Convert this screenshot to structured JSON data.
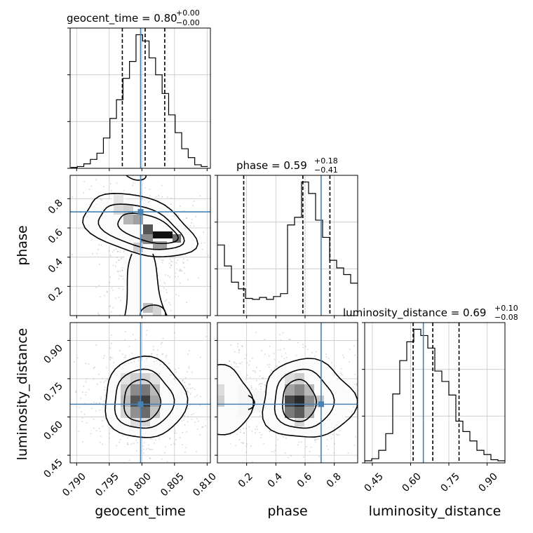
{
  "chart_data": {
    "type": "corner",
    "parameters": [
      "geocent_time",
      "phase",
      "luminosity_distance"
    ],
    "truths": [
      0.7998,
      0.71,
      0.65
    ],
    "truth_color": "#4682b4",
    "grid": true,
    "panels": [
      {
        "kind": "hist",
        "param": "geocent_time",
        "title": {
          "label": "geocent_time = 0.80",
          "plus": "+0.00",
          "minus": "−0.00"
        },
        "x_ticks": [
          "0.790",
          "0.795",
          "0.800",
          "0.805",
          "0.810"
        ],
        "xlim": [
          0.789,
          0.8105
        ],
        "xlabel": "geocent_time",
        "quantiles": [
          0.797,
          0.8005,
          0.8035
        ],
        "bin_edges": [
          0.7891,
          0.7901,
          0.7911,
          0.7921,
          0.7931,
          0.7941,
          0.7951,
          0.7961,
          0.7971,
          0.7981,
          0.7991,
          0.8001,
          0.8011,
          0.8021,
          0.8031,
          0.8041,
          0.8051,
          0.8061,
          0.8071,
          0.8081,
          0.8091,
          0.8101
        ],
        "counts": [
          1,
          2,
          5,
          10,
          17,
          34,
          56,
          77,
          101,
          120,
          150,
          143,
          124,
          105,
          84,
          60,
          40,
          22,
          12,
          4,
          2
        ]
      },
      {
        "kind": "hist",
        "param": "phase",
        "title": {
          "label": "phase = 0.59",
          "plus": "+0.18",
          "minus": "−0.41"
        },
        "xlim": [
          0.0,
          0.96
        ],
        "quantiles": [
          0.18,
          0.585,
          0.77
        ],
        "bin_edges": [
          0.0,
          0.048,
          0.096,
          0.144,
          0.192,
          0.24,
          0.288,
          0.336,
          0.384,
          0.432,
          0.48,
          0.528,
          0.576,
          0.624,
          0.672,
          0.72,
          0.768,
          0.816,
          0.864,
          0.912,
          0.96
        ],
        "counts": [
          74,
          52,
          35,
          28,
          18,
          17,
          19,
          17,
          20,
          23,
          95,
          103,
          140,
          128,
          100,
          82,
          58,
          50,
          43,
          34
        ]
      },
      {
        "kind": "hist",
        "param": "luminosity_distance",
        "title": {
          "label": "luminosity_distance = 0.69",
          "plus": "+0.10",
          "minus": "−0.08"
        },
        "x_ticks": [
          "0.45",
          "0.60",
          "0.75",
          "0.90"
        ],
        "xlim": [
          0.42,
          0.97
        ],
        "xlabel": "luminosity_distance",
        "quantiles": [
          0.61,
          0.687,
          0.79
        ],
        "bin_edges": [
          0.42,
          0.4475,
          0.475,
          0.5025,
          0.53,
          0.5575,
          0.585,
          0.6125,
          0.64,
          0.6675,
          0.695,
          0.7225,
          0.75,
          0.7775,
          0.805,
          0.8325,
          0.86,
          0.8875,
          0.915,
          0.9425,
          0.97
        ],
        "counts": [
          2,
          4,
          12,
          28,
          66,
          98,
          116,
          128,
          122,
          110,
          88,
          78,
          65,
          40,
          30,
          21,
          12,
          8,
          3,
          2
        ]
      },
      {
        "kind": "2d",
        "x": "geocent_time",
        "y": "phase",
        "y_ticks": [
          "0.2",
          "0.4",
          "0.6",
          "0.8"
        ],
        "ylim": [
          0.0,
          0.96
        ],
        "ylabel": "phase",
        "density_peak": [
          0.801,
          0.6
        ]
      },
      {
        "kind": "2d",
        "x": "geocent_time",
        "y": "luminosity_distance",
        "y_ticks": [
          "0.45",
          "0.60",
          "0.75",
          "0.90"
        ],
        "ylim": [
          0.42,
          0.97
        ],
        "ylabel": "luminosity_distance",
        "density_peak": [
          0.7998,
          0.66
        ]
      },
      {
        "kind": "2d",
        "x": "phase",
        "y": "luminosity_distance",
        "x_ticks": [
          "0.2",
          "0.4",
          "0.6",
          "0.8"
        ],
        "xlabel": "phase",
        "density_peak": [
          0.6,
          0.67
        ]
      }
    ]
  }
}
